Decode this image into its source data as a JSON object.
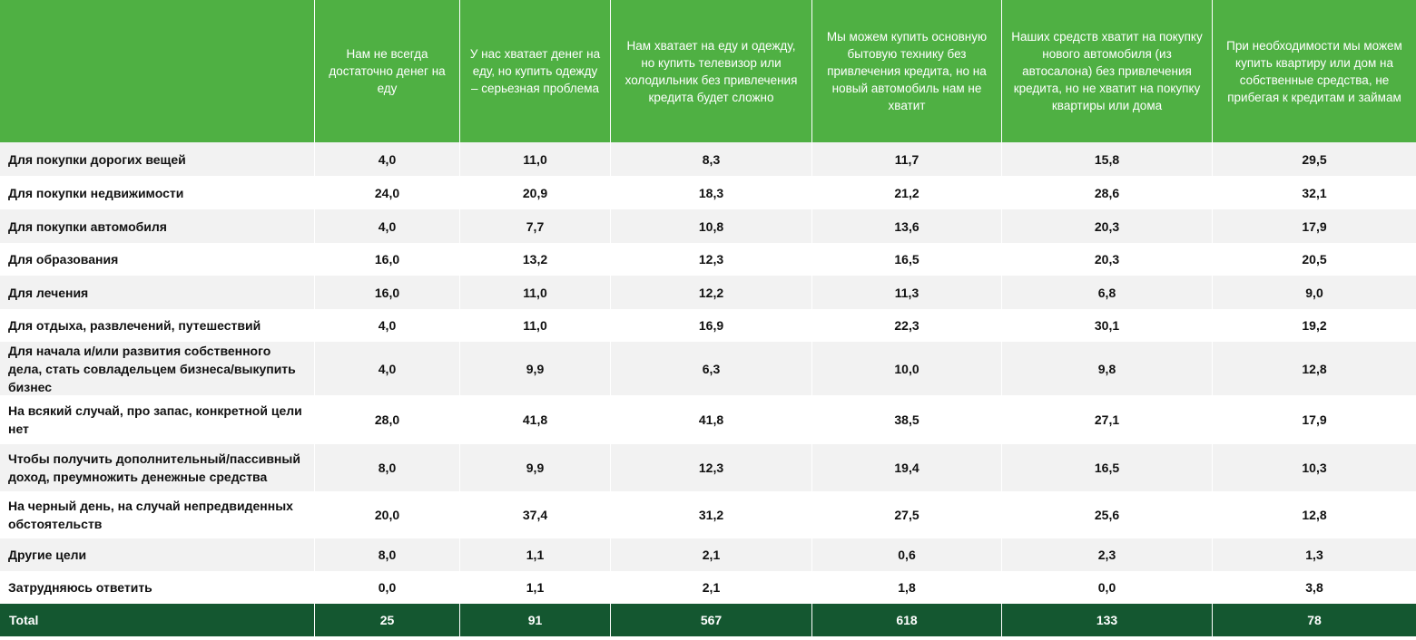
{
  "table": {
    "columns": [
      "",
      "Нам не всегда достаточно денег на еду",
      "У нас хватает денег на еду, но купить одежду – серьезная проблема",
      "Нам хватает на еду и одежду, но купить телевизор или холодильник без привлечения кредита будет сложно",
      "Мы можем купить основную бытовую технику без привлечения кредита, но на новый автомобиль нам не хватит",
      "Наших средств хватит на покупку нового автомобиля (из автосалона) без привлечения кредита, но не хватит на покупку квартиры или дома",
      "При необходимости мы можем купить квартиру или дом на собственные средства, не прибегая к кредитам и займам"
    ],
    "rows": [
      {
        "label": "Для покупки дорогих вещей",
        "values": [
          "4,0",
          "11,0",
          "8,3",
          "11,7",
          "15,8",
          "29,5"
        ]
      },
      {
        "label": "Для покупки недвижимости",
        "values": [
          "24,0",
          "20,9",
          "18,3",
          "21,2",
          "28,6",
          "32,1"
        ]
      },
      {
        "label": "Для покупки автомобиля",
        "values": [
          "4,0",
          "7,7",
          "10,8",
          "13,6",
          "20,3",
          "17,9"
        ]
      },
      {
        "label": "Для образования",
        "values": [
          "16,0",
          "13,2",
          "12,3",
          "16,5",
          "20,3",
          "20,5"
        ]
      },
      {
        "label": "Для лечения",
        "values": [
          "16,0",
          "11,0",
          "12,2",
          "11,3",
          "6,8",
          "9,0"
        ]
      },
      {
        "label": "Для отдыха, развлечений, путешествий",
        "values": [
          "4,0",
          "11,0",
          "16,9",
          "22,3",
          "30,1",
          "19,2"
        ]
      },
      {
        "label": "Для начала и/или развития собственного дела, стать совладельцем бизнеса/выкупить бизнес",
        "values": [
          "4,0",
          "9,9",
          "6,3",
          "10,0",
          "9,8",
          "12,8"
        ]
      },
      {
        "label": "На всякий случай, про запас, конкретной цели нет",
        "values": [
          "28,0",
          "41,8",
          "41,8",
          "38,5",
          "27,1",
          "17,9"
        ]
      },
      {
        "label": "Чтобы получить дополнительный/пассивный доход, преумножить денежные средства",
        "values": [
          "8,0",
          "9,9",
          "12,3",
          "19,4",
          "16,5",
          "10,3"
        ]
      },
      {
        "label": "На черный день, на случай непредвиденных обстоятельств",
        "values": [
          "20,0",
          "37,4",
          "31,2",
          "27,5",
          "25,6",
          "12,8"
        ]
      },
      {
        "label": "Другие цели",
        "values": [
          "8,0",
          "1,1",
          "2,1",
          "0,6",
          "2,3",
          "1,3"
        ]
      },
      {
        "label": "Затрудняюсь ответить",
        "values": [
          "0,0",
          "1,1",
          "2,1",
          "1,8",
          "0,0",
          "3,8"
        ]
      }
    ],
    "total": {
      "label": "Total",
      "values": [
        "25",
        "91",
        "567",
        "618",
        "133",
        "78"
      ]
    }
  },
  "colors": {
    "header": "#4fb043",
    "total_row": "#145730",
    "stripe": "#f2f2f2"
  }
}
